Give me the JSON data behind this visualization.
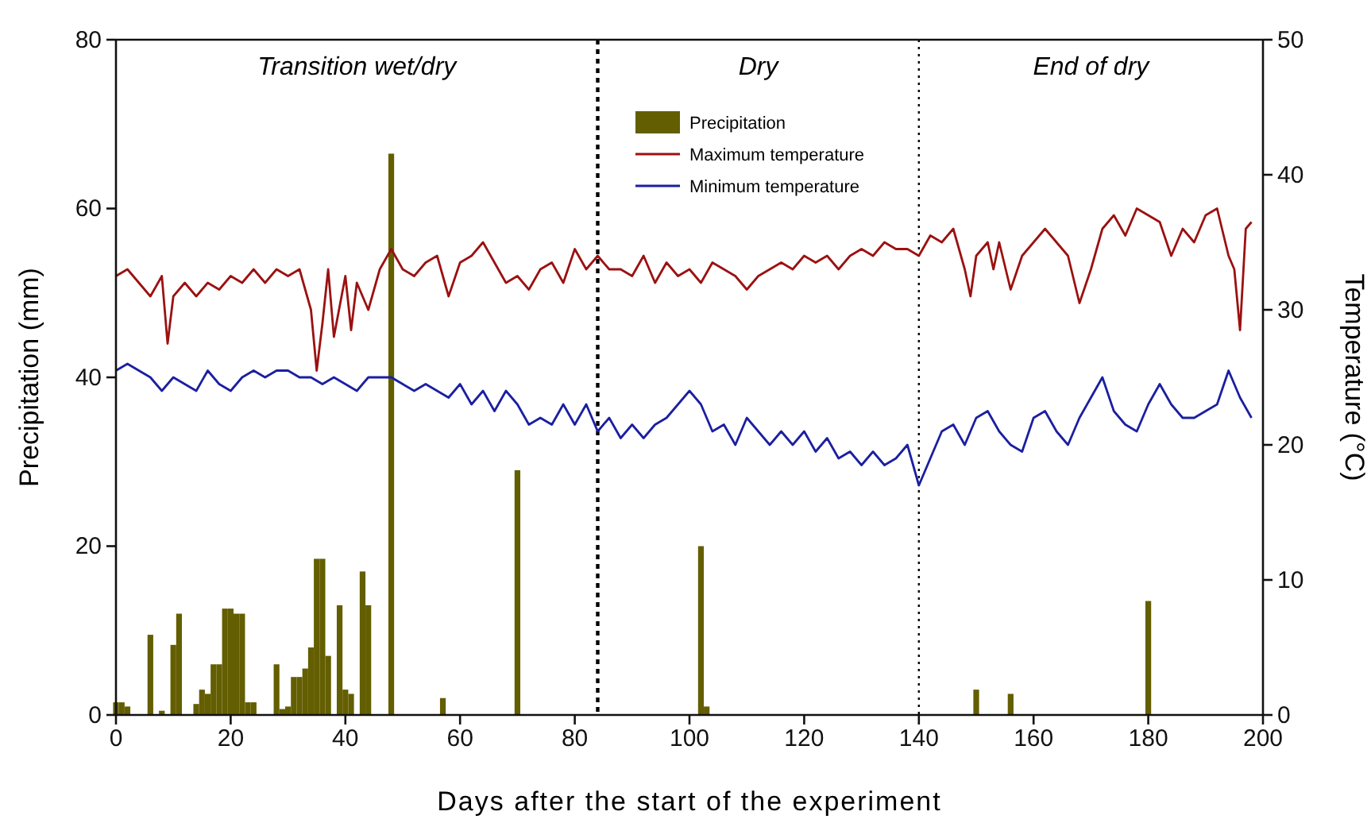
{
  "chart_data": {
    "type": "line",
    "xlabel": "Days after the start of the experiment",
    "ylabel": "Precipitation (mm)",
    "y2label": "Temperature (°C)",
    "xlim": [
      0,
      200
    ],
    "xticks": [
      0,
      20,
      40,
      60,
      80,
      100,
      120,
      140,
      160,
      180,
      200
    ],
    "ylim": [
      0,
      80
    ],
    "yticks": [
      0,
      20,
      40,
      60,
      80
    ],
    "y2lim": [
      0,
      50
    ],
    "y2ticks": [
      0,
      10,
      20,
      30,
      40,
      50
    ],
    "legend": "top",
    "grid": false,
    "annotations": [
      "Transition wet/dry",
      "Dry",
      "End of dry"
    ],
    "ref_lines": [
      {
        "axis": "x",
        "value": 84,
        "label": null,
        "line_style": "dashed",
        "color": "#000000"
      },
      {
        "axis": "x",
        "value": 140,
        "label": null,
        "line_style": "dotted",
        "color": "#000000"
      }
    ],
    "series": [
      {
        "name": "Precipitation",
        "type": "bar",
        "color": "#635e00",
        "x": [
          0,
          1,
          2,
          6,
          8,
          10,
          11,
          14,
          15,
          16,
          17,
          18,
          19,
          20,
          21,
          22,
          23,
          24,
          28,
          29,
          30,
          31,
          32,
          33,
          34,
          35,
          36,
          37,
          39,
          40,
          41,
          43,
          44,
          48,
          57,
          70,
          102,
          103,
          150,
          156,
          180
        ],
        "values": [
          1.5,
          1.5,
          1,
          9.5,
          0.5,
          8.3,
          12,
          1.3,
          3,
          2.5,
          6,
          6,
          12.6,
          12.6,
          12,
          12,
          1.5,
          1.5,
          6,
          0.7,
          1,
          4.5,
          4.5,
          5.5,
          8,
          18.5,
          18.5,
          7,
          13,
          3,
          2.5,
          17,
          13,
          66.5,
          2,
          29,
          20,
          1,
          3,
          2.5,
          13.5
        ]
      },
      {
        "name": "Maximum temperature",
        "axis": "y2",
        "color": "#9b1111",
        "x": [
          0,
          2,
          4,
          6,
          8,
          9,
          10,
          12,
          14,
          16,
          18,
          20,
          22,
          24,
          26,
          28,
          30,
          32,
          34,
          35,
          36,
          37,
          38,
          40,
          41,
          42,
          44,
          46,
          48,
          50,
          52,
          54,
          56,
          58,
          60,
          62,
          64,
          66,
          68,
          70,
          72,
          74,
          76,
          78,
          80,
          82,
          84,
          86,
          88,
          90,
          92,
          94,
          96,
          98,
          100,
          102,
          104,
          106,
          108,
          110,
          112,
          114,
          116,
          118,
          120,
          122,
          124,
          126,
          128,
          130,
          132,
          134,
          136,
          138,
          140,
          142,
          144,
          146,
          148,
          149,
          150,
          152,
          153,
          154,
          156,
          158,
          160,
          162,
          164,
          166,
          168,
          170,
          172,
          174,
          176,
          178,
          180,
          182,
          184,
          186,
          188,
          190,
          192,
          194,
          195,
          196,
          197,
          198
        ],
        "values": [
          32.5,
          33,
          32,
          31,
          32.5,
          27.5,
          31,
          32,
          31,
          32,
          31.5,
          32.5,
          32,
          33,
          32,
          33,
          32.5,
          33,
          30,
          25.5,
          29,
          33,
          28,
          32.5,
          28.5,
          32,
          30,
          33,
          34.5,
          33,
          32.5,
          33.5,
          34,
          31,
          33.5,
          34,
          35,
          33.5,
          32,
          32.5,
          31.5,
          33,
          33.5,
          32,
          34.5,
          33,
          34,
          33,
          33,
          32.5,
          34,
          32,
          33.5,
          32.5,
          33,
          32,
          33.5,
          33,
          32.5,
          31.5,
          32.5,
          33,
          33.5,
          33,
          34,
          33.5,
          34,
          33,
          34,
          34.5,
          34,
          35,
          34.5,
          34.5,
          34,
          35.5,
          35,
          36,
          33,
          31,
          34,
          35,
          33,
          35,
          31.5,
          34,
          35,
          36,
          35,
          34,
          30.5,
          33,
          36,
          37,
          35.5,
          37.5,
          37,
          36.5,
          34,
          36,
          35,
          37,
          37.5,
          34,
          33,
          28.5,
          36,
          36.5
        ]
      },
      {
        "name": "Minimum temperature",
        "axis": "y2",
        "color": "#1b1fa0",
        "x": [
          0,
          2,
          4,
          6,
          8,
          10,
          12,
          14,
          16,
          18,
          20,
          22,
          24,
          26,
          28,
          30,
          32,
          34,
          36,
          38,
          40,
          42,
          44,
          46,
          48,
          50,
          52,
          54,
          56,
          58,
          60,
          62,
          64,
          66,
          68,
          70,
          72,
          74,
          76,
          78,
          80,
          82,
          84,
          86,
          88,
          90,
          92,
          94,
          96,
          98,
          100,
          102,
          104,
          106,
          108,
          110,
          112,
          114,
          116,
          118,
          120,
          122,
          124,
          126,
          128,
          130,
          132,
          134,
          136,
          138,
          140,
          142,
          144,
          146,
          148,
          150,
          152,
          154,
          156,
          158,
          160,
          162,
          164,
          166,
          168,
          170,
          172,
          174,
          176,
          178,
          180,
          182,
          184,
          186,
          188,
          190,
          192,
          194,
          196,
          198
        ],
        "values": [
          25.5,
          26,
          25.5,
          25,
          24,
          25,
          24.5,
          24,
          25.5,
          24.5,
          24,
          25,
          25.5,
          25,
          25.5,
          25.5,
          25,
          25,
          24.5,
          25,
          24.5,
          24,
          25,
          25,
          25,
          24.5,
          24,
          24.5,
          24,
          23.5,
          24.5,
          23,
          24,
          22.5,
          24,
          23,
          21.5,
          22,
          21.5,
          23,
          21.5,
          23,
          21,
          22,
          20.5,
          21.5,
          20.5,
          21.5,
          22,
          23,
          24,
          23,
          21,
          21.5,
          20,
          22,
          21,
          20,
          21,
          20,
          21,
          19.5,
          20.5,
          19,
          19.5,
          18.5,
          19.5,
          18.5,
          19,
          20,
          17,
          19,
          21,
          21.5,
          20,
          22,
          22.5,
          21,
          20,
          19.5,
          22,
          22.5,
          21,
          20,
          22,
          23.5,
          25,
          22.5,
          21.5,
          21,
          23,
          24.5,
          23,
          22,
          22,
          22.5,
          23,
          25.5,
          23.5,
          22
        ]
      }
    ]
  }
}
